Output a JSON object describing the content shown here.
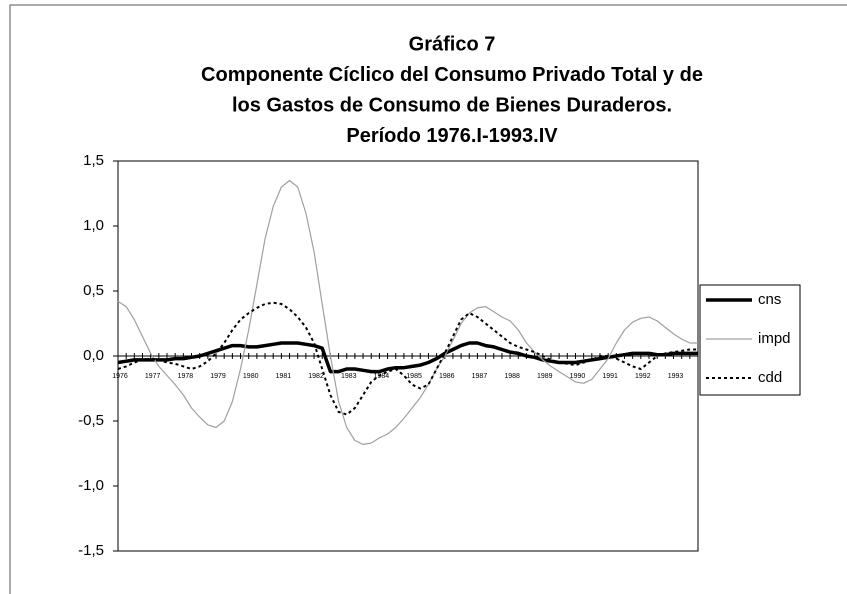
{
  "chart_data": {
    "type": "line",
    "title": [
      "Gráfico 7",
      "Componente Cíclico del Consumo Privado Total y de",
      "los Gastos de Consumo de Bienes Duraderos.",
      "Período 1976.I-1993.IV"
    ],
    "categories": [
      "1976",
      null,
      null,
      null,
      "1977",
      null,
      null,
      null,
      "1978",
      null,
      null,
      null,
      "1979",
      null,
      null,
      null,
      "1980",
      null,
      null,
      null,
      "1981",
      null,
      null,
      null,
      "1982",
      null,
      null,
      null,
      "1983",
      null,
      null,
      null,
      "1984",
      null,
      null,
      null,
      "1985",
      null,
      null,
      null,
      "1986",
      null,
      null,
      null,
      "1987",
      null,
      null,
      null,
      "1988",
      null,
      null,
      null,
      "1989",
      null,
      null,
      null,
      "1990",
      null,
      null,
      null,
      "1991",
      null,
      null,
      null,
      "1992",
      null,
      null,
      null,
      "1993",
      null,
      null,
      null
    ],
    "series": [
      {
        "name": "cns",
        "color": "#000000",
        "values": [
          -0.05,
          -0.04,
          -0.03,
          -0.03,
          -0.03,
          -0.03,
          -0.03,
          -0.02,
          -0.02,
          -0.01,
          0.0,
          0.02,
          0.04,
          0.06,
          0.08,
          0.08,
          0.07,
          0.07,
          0.08,
          0.09,
          0.1,
          0.1,
          0.1,
          0.09,
          0.08,
          0.06,
          -0.12,
          -0.12,
          -0.1,
          -0.1,
          -0.11,
          -0.12,
          -0.12,
          -0.1,
          -0.09,
          -0.09,
          -0.08,
          -0.07,
          -0.05,
          -0.02,
          0.02,
          0.05,
          0.08,
          0.1,
          0.1,
          0.08,
          0.07,
          0.05,
          0.03,
          0.02,
          0.0,
          -0.01,
          -0.03,
          -0.04,
          -0.05,
          -0.05,
          -0.05,
          -0.04,
          -0.03,
          -0.02,
          -0.01,
          0.0,
          0.01,
          0.02,
          0.02,
          0.02,
          0.01,
          0.01,
          0.02,
          0.02,
          0.02,
          0.02
        ]
      },
      {
        "name": "impd",
        "color": "#a0a0a0",
        "values": [
          0.42,
          0.38,
          0.28,
          0.15,
          0.02,
          -0.08,
          -0.15,
          -0.22,
          -0.3,
          -0.4,
          -0.47,
          -0.53,
          -0.55,
          -0.5,
          -0.35,
          -0.1,
          0.2,
          0.55,
          0.9,
          1.15,
          1.3,
          1.35,
          1.3,
          1.1,
          0.8,
          0.4,
          0.0,
          -0.35,
          -0.55,
          -0.65,
          -0.68,
          -0.67,
          -0.63,
          -0.6,
          -0.55,
          -0.48,
          -0.4,
          -0.32,
          -0.22,
          -0.1,
          0.0,
          0.12,
          0.25,
          0.33,
          0.37,
          0.38,
          0.34,
          0.3,
          0.27,
          0.2,
          0.1,
          0.03,
          -0.03,
          -0.08,
          -0.12,
          -0.16,
          -0.2,
          -0.21,
          -0.18,
          -0.1,
          -0.02,
          0.1,
          0.2,
          0.26,
          0.29,
          0.3,
          0.27,
          0.22,
          0.17,
          0.13,
          0.1,
          0.1
        ]
      },
      {
        "name": "cdd",
        "color": "#000000",
        "values": [
          -0.1,
          -0.08,
          -0.05,
          -0.03,
          -0.02,
          -0.03,
          -0.05,
          -0.06,
          -0.08,
          -0.1,
          -0.08,
          -0.04,
          0.02,
          0.1,
          0.2,
          0.28,
          0.33,
          0.37,
          0.4,
          0.41,
          0.4,
          0.36,
          0.3,
          0.22,
          0.1,
          -0.1,
          -0.3,
          -0.43,
          -0.45,
          -0.4,
          -0.3,
          -0.2,
          -0.15,
          -0.12,
          -0.1,
          -0.15,
          -0.22,
          -0.25,
          -0.22,
          -0.1,
          0.02,
          0.15,
          0.28,
          0.33,
          0.3,
          0.25,
          0.2,
          0.15,
          0.1,
          0.07,
          0.05,
          0.03,
          0.0,
          -0.03,
          -0.05,
          -0.06,
          -0.07,
          -0.05,
          -0.03,
          0.0,
          0.0,
          -0.02,
          -0.05,
          -0.08,
          -0.1,
          -0.05,
          0.0,
          0.02,
          0.03,
          0.04,
          0.05,
          0.05
        ]
      }
    ],
    "ylim": [
      -1.5,
      1.5
    ],
    "yticks": [
      {
        "value": -1.5,
        "label": "-1,5"
      },
      {
        "value": -1,
        "label": "-1,0"
      },
      {
        "value": -0.5,
        "label": "-0,5"
      },
      {
        "value": 0,
        "label": "0,0"
      },
      {
        "value": 0.5,
        "label": "0,5"
      },
      {
        "value": 1,
        "label": "1,0"
      },
      {
        "value": 1.5,
        "label": "1,5"
      }
    ],
    "legend": "right"
  }
}
